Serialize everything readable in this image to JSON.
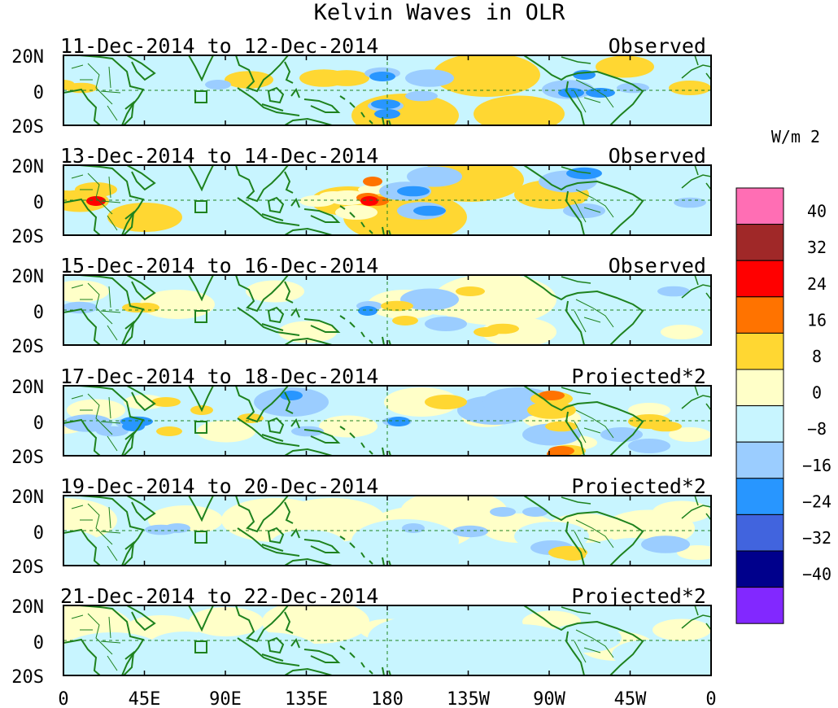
{
  "title": "Kelvin Waves in OLR",
  "units": "W/m 2",
  "colorbar": {
    "labels": [
      "40",
      "32",
      "24",
      "16",
      "8",
      "0",
      "−8",
      "−16",
      "−24",
      "−32",
      "−40"
    ],
    "colors": [
      "#ff6eb4",
      "#a02828",
      "#ff0000",
      "#ff7300",
      "#ffd732",
      "#ffffc8",
      "#c8f5ff",
      "#9bcdff",
      "#2896ff",
      "#4164de",
      "#00008c",
      "#8228ff"
    ]
  },
  "x_ticks": [
    "0",
    "45E",
    "90E",
    "135E",
    "180",
    "135W",
    "90W",
    "45W",
    "0"
  ],
  "y_ticks": [
    "20N",
    "0",
    "20S"
  ],
  "land_outline_color": "#1e821e",
  "panels": [
    {
      "date_range": "11-Dec-2014 to 12-Dec-2014",
      "label": "Observed"
    },
    {
      "date_range": "13-Dec-2014 to 14-Dec-2014",
      "label": "Observed"
    },
    {
      "date_range": "15-Dec-2014 to 16-Dec-2014",
      "label": "Observed"
    },
    {
      "date_range": "17-Dec-2014 to 18-Dec-2014",
      "label": "Projected*2"
    },
    {
      "date_range": "19-Dec-2014 to 20-Dec-2014",
      "label": "Projected*2"
    },
    {
      "date_range": "21-Dec-2014 to 22-Dec-2014",
      "label": "Projected*2"
    }
  ]
}
